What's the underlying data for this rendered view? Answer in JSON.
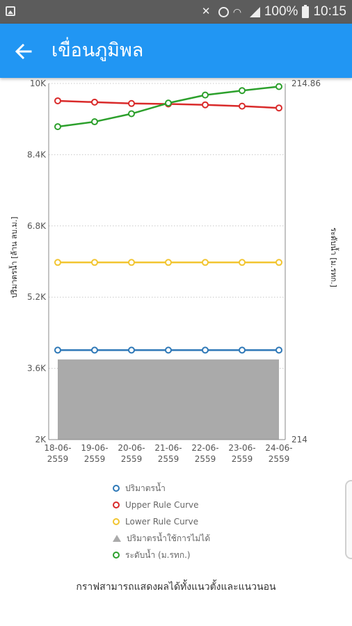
{
  "status_bar": {
    "battery": "100%",
    "time": "10:15",
    "icons": [
      "gallery-icon",
      "mute-icon",
      "alarm-icon",
      "wifi-icon",
      "signal-icon",
      "battery-icon"
    ]
  },
  "app_bar": {
    "title": "เขื่อนภูมิพล",
    "back_icon": "arrow-left-icon",
    "color": "#2196f3"
  },
  "chart_data": {
    "type": "line",
    "categories": [
      "18-06-2559",
      "19-06-2559",
      "20-06-2559",
      "21-06-2559",
      "22-06-2559",
      "23-06-2559",
      "24-06-2559"
    ],
    "category_lines": [
      [
        "18-06-",
        "2559"
      ],
      [
        "19-06-",
        "2559"
      ],
      [
        "20-06-",
        "2559"
      ],
      [
        "21-06-",
        "2559"
      ],
      [
        "22-06-",
        "2559"
      ],
      [
        "23-06-",
        "2559"
      ],
      [
        "24-06-",
        "2559"
      ]
    ],
    "ylabel": "ปริมาตรน้ำ [ล้าน ลบ.ม.]",
    "y2label": "ระดับน้ำ [ม.รทก.]",
    "ylim": [
      2000,
      10000
    ],
    "yticks": [
      2000,
      3600,
      5200,
      6800,
      8400,
      10000
    ],
    "ytick_labels": [
      "2K",
      "3.6K",
      "5.2K",
      "6.8K",
      "8.4K",
      "10K"
    ],
    "y2_tick_labels": [
      "214",
      "214.86"
    ],
    "grid": true,
    "series": [
      {
        "name": "ปริมาตรน้ำ",
        "color": "#2e78b7",
        "axis": "left",
        "marker": "open-circle",
        "values": [
          4010,
          4010,
          4010,
          4010,
          4010,
          4010,
          4010
        ]
      },
      {
        "name": "Upper Rule Curve",
        "color": "#d92a2a",
        "axis": "left",
        "marker": "open-circle",
        "values": [
          9610,
          9580,
          9550,
          9540,
          9520,
          9490,
          9450
        ]
      },
      {
        "name": "Lower Rule Curve",
        "color": "#f2c531",
        "axis": "left",
        "marker": "open-circle",
        "values": [
          5980,
          5980,
          5980,
          5980,
          5980,
          5980,
          5980
        ]
      },
      {
        "name": "ปริมาตรน้ำใช้การไม่ได้",
        "color": "#aaaaaa",
        "axis": "left",
        "marker": "area",
        "values": [
          3800,
          3800,
          3800,
          3800,
          3800,
          3800,
          3800
        ]
      },
      {
        "name": "ระดับน้ำ (ม.รทก.)",
        "color": "#2ca02c",
        "axis": "left",
        "marker": "open-circle",
        "values": [
          9030,
          9140,
          9320,
          9560,
          9740,
          9840,
          9930
        ]
      }
    ]
  },
  "caption": "กราฟสามารถแสดงผลได้ทั้งแนวตั้งและแนวนอน"
}
